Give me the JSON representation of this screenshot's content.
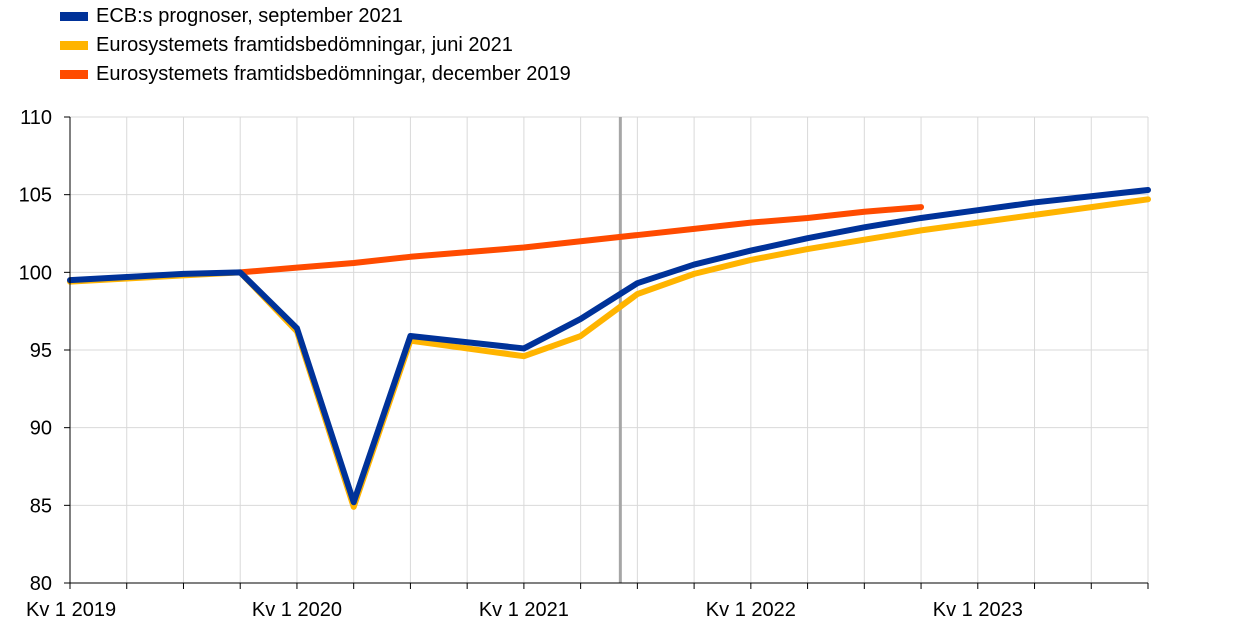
{
  "colors": {
    "ecb_sep2021": "#003299",
    "euro_jun2021": "#ffb400",
    "euro_dec2019": "#ff4b00",
    "grid": "#d9d9d9",
    "divider": "#a6a6a6",
    "axis": "#000000"
  },
  "legend": [
    {
      "label": "ECB:s prognoser, september 2021",
      "color": "#003299"
    },
    {
      "label": "Eurosystemets framtidsbedömningar, juni 2021",
      "color": "#ffb400"
    },
    {
      "label": "Eurosystemets framtidsbedömningar, december 2019",
      "color": "#ff4b00"
    }
  ],
  "chart_data": {
    "type": "line",
    "x": [
      "2019Q1",
      "2019Q2",
      "2019Q3",
      "2019Q4",
      "2020Q1",
      "2020Q2",
      "2020Q3",
      "2020Q4",
      "2021Q1",
      "2021Q2",
      "2021Q3",
      "2021Q4",
      "2022Q1",
      "2022Q2",
      "2022Q3",
      "2022Q4",
      "2023Q1",
      "2023Q2",
      "2023Q3",
      "2023Q4"
    ],
    "x_tick_labels": [
      {
        "at": "2019Q1",
        "label": "Kv 1 2019"
      },
      {
        "at": "2020Q1",
        "label": "Kv 1 2020"
      },
      {
        "at": "2021Q1",
        "label": "Kv 1 2021"
      },
      {
        "at": "2022Q1",
        "label": "Kv 1 2022"
      },
      {
        "at": "2023Q1",
        "label": "Kv 1 2023"
      }
    ],
    "y_ticks": [
      80,
      85,
      90,
      95,
      100,
      105,
      110
    ],
    "ylim": [
      80,
      110
    ],
    "grid": true,
    "legend_position": "top-left",
    "forecast_divider_x": "2021Q2.7",
    "series": [
      {
        "name": "Eurosystemets framtidsbedömningar, december 2019",
        "color": "#ff4b00",
        "x": [
          "2019Q4",
          "2020Q1",
          "2020Q2",
          "2020Q3",
          "2020Q4",
          "2021Q1",
          "2021Q2",
          "2021Q3",
          "2021Q4",
          "2022Q1",
          "2022Q2",
          "2022Q3",
          "2022Q4"
        ],
        "values": [
          100.0,
          100.3,
          100.6,
          101.0,
          101.3,
          101.6,
          102.0,
          102.4,
          102.8,
          103.2,
          103.5,
          103.9,
          104.2
        ]
      },
      {
        "name": "Eurosystemets framtidsbedömningar, juni 2021",
        "color": "#ffb400",
        "x": [
          "2019Q1",
          "2019Q2",
          "2019Q3",
          "2019Q4",
          "2020Q1",
          "2020Q2",
          "2020Q3",
          "2020Q4",
          "2021Q1",
          "2021Q2",
          "2021Q3",
          "2021Q4",
          "2022Q1",
          "2022Q2",
          "2022Q3",
          "2022Q4",
          "2023Q1",
          "2023Q2",
          "2023Q3",
          "2023Q4"
        ],
        "values": [
          99.4,
          99.6,
          99.8,
          100.0,
          96.2,
          84.9,
          95.6,
          95.1,
          94.6,
          95.9,
          98.6,
          99.9,
          100.8,
          101.5,
          102.1,
          102.7,
          103.2,
          103.7,
          104.2,
          104.7
        ]
      },
      {
        "name": "ECB:s prognoser, september 2021",
        "color": "#003299",
        "x": [
          "2019Q1",
          "2019Q2",
          "2019Q3",
          "2019Q4",
          "2020Q1",
          "2020Q2",
          "2020Q3",
          "2020Q4",
          "2021Q1",
          "2021Q2",
          "2021Q3",
          "2021Q4",
          "2022Q1",
          "2022Q2",
          "2022Q3",
          "2022Q4",
          "2023Q1",
          "2023Q2",
          "2023Q3",
          "2023Q4"
        ],
        "values": [
          99.5,
          99.7,
          99.9,
          100.0,
          96.4,
          85.2,
          95.9,
          95.5,
          95.1,
          97.0,
          99.3,
          100.5,
          101.4,
          102.2,
          102.9,
          103.5,
          104.0,
          104.5,
          104.9,
          105.3
        ]
      }
    ]
  }
}
